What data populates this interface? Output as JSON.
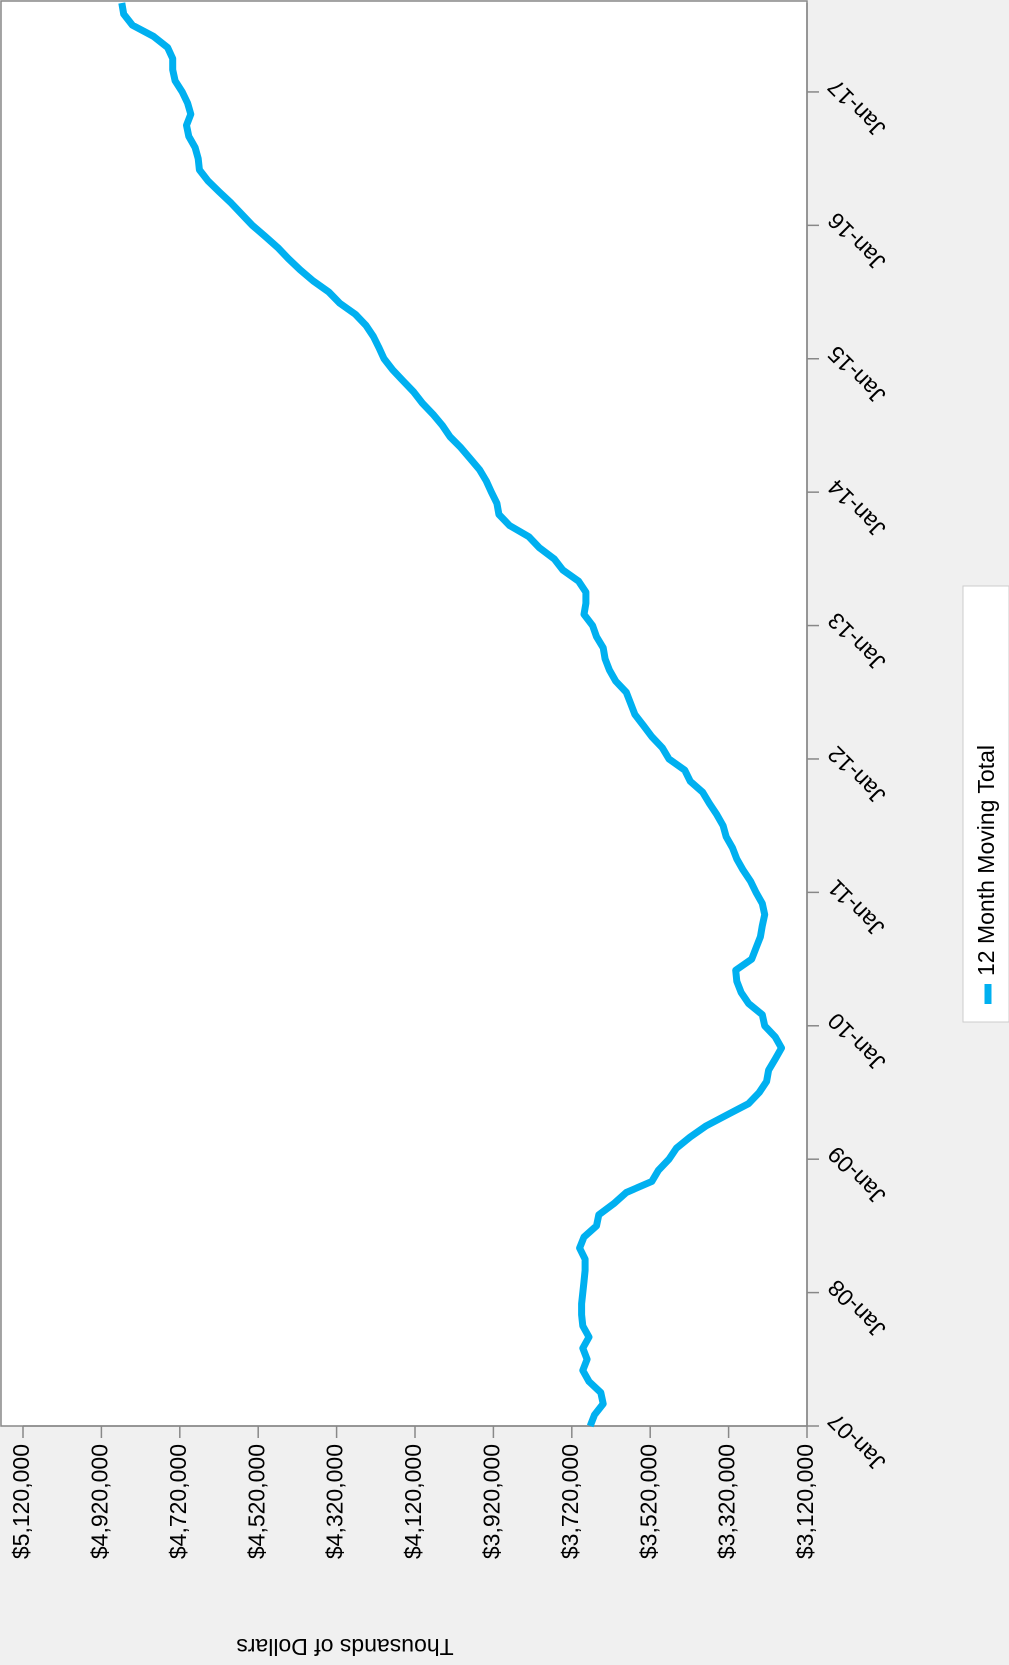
{
  "chart_data": {
    "type": "line",
    "y_label": "Thousands of Dollars",
    "categories": [
      "Jan-07",
      null,
      null,
      null,
      null,
      null,
      null,
      null,
      null,
      null,
      null,
      null,
      "Jan-08",
      null,
      null,
      null,
      null,
      null,
      null,
      null,
      null,
      null,
      null,
      null,
      "Jan-09",
      null,
      null,
      null,
      null,
      null,
      null,
      null,
      null,
      null,
      null,
      null,
      "Jan-10",
      null,
      null,
      null,
      null,
      null,
      null,
      null,
      null,
      null,
      null,
      null,
      "Jan-11",
      null,
      null,
      null,
      null,
      null,
      null,
      null,
      null,
      null,
      null,
      null,
      "Jan-12",
      null,
      null,
      null,
      null,
      null,
      null,
      null,
      null,
      null,
      null,
      null,
      "Jan-13",
      null,
      null,
      null,
      null,
      null,
      null,
      null,
      null,
      null,
      null,
      null,
      "Jan-14",
      null,
      null,
      null,
      null,
      null,
      null,
      null,
      null,
      null,
      null,
      null,
      "Jan-15",
      null,
      null,
      null,
      null,
      null,
      null,
      null,
      null,
      null,
      null,
      null,
      "Jan-16",
      null,
      null,
      null,
      null,
      null,
      null,
      null,
      null,
      null,
      null,
      null,
      "Jan-17",
      null,
      null,
      null,
      null,
      null,
      null,
      null,
      null
    ],
    "series": [
      {
        "name": "12 Month Moving Total",
        "color": "#00b0f0",
        "values": [
          3673000,
          3662000,
          3640000,
          3646000,
          3676000,
          3692000,
          3681000,
          3692000,
          3676000,
          3692000,
          3695000,
          3695000,
          3692000,
          3689000,
          3686000,
          3686000,
          3700000,
          3689000,
          3657000,
          3651000,
          3613000,
          3581000,
          3516000,
          3499000,
          3472000,
          3453000,
          3418000,
          3377000,
          3323000,
          3269000,
          3242000,
          3223000,
          3218000,
          3201000,
          3185000,
          3201000,
          3228000,
          3234000,
          3269000,
          3288000,
          3299000,
          3302000,
          3261000,
          3250000,
          3239000,
          3234000,
          3228000,
          3234000,
          3250000,
          3264000,
          3283000,
          3299000,
          3310000,
          3326000,
          3334000,
          3350000,
          3369000,
          3386000,
          3418000,
          3432000,
          3472000,
          3489000,
          3516000,
          3537000,
          3559000,
          3570000,
          3581000,
          3608000,
          3624000,
          3635000,
          3640000,
          3657000,
          3667000,
          3689000,
          3684000,
          3684000,
          3703000,
          3743000,
          3765000,
          3803000,
          3830000,
          3879000,
          3906000,
          3911000,
          3925000,
          3938000,
          3955000,
          3979000,
          4003000,
          4031000,
          4050000,
          4074000,
          4101000,
          4123000,
          4150000,
          4177000,
          4199000,
          4212000,
          4226000,
          4245000,
          4272000,
          4312000,
          4340000,
          4380000,
          4413000,
          4443000,
          4470000,
          4502000,
          4535000,
          4562000,
          4589000,
          4619000,
          4648000,
          4670000,
          4673000,
          4681000,
          4697000,
          4703000,
          4692000,
          4700000,
          4714000,
          4732000,
          4738000,
          4738000,
          4751000,
          4787000,
          4841000,
          4863000,
          4868000
        ]
      }
    ],
    "ylim": [
      3120000,
      5120000
    ],
    "yticks": [
      {
        "value": 3120000,
        "label": "$3,120,000"
      },
      {
        "value": 3320000,
        "label": "$3,320,000"
      },
      {
        "value": 3520000,
        "label": "$3,520,000"
      },
      {
        "value": 3720000,
        "label": "$3,720,000"
      },
      {
        "value": 3920000,
        "label": "$3,920,000"
      },
      {
        "value": 4120000,
        "label": "$4,120,000"
      },
      {
        "value": 4320000,
        "label": "$4,320,000"
      },
      {
        "value": 4520000,
        "label": "$4,520,000"
      },
      {
        "value": 4720000,
        "label": "$4,720,000"
      },
      {
        "value": 4920000,
        "label": "$4,920,000"
      },
      {
        "value": 5120000,
        "label": "$5,120,000"
      }
    ]
  }
}
